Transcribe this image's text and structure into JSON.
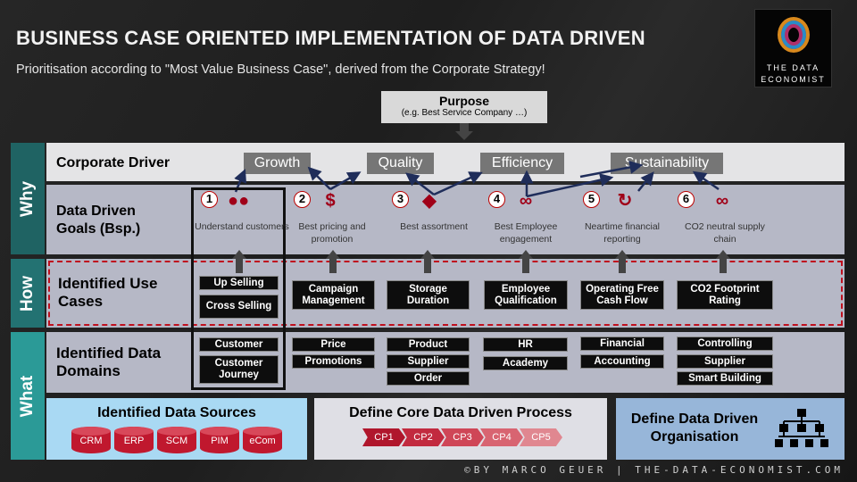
{
  "title": "BUSINESS CASE ORIENTED IMPLEMENTATION OF DATA DRIVEN",
  "subtitle": "Prioritisation according to \"Most Value Business Case\", derived from the Corporate Strategy!",
  "logo": {
    "line1": "THE DATA",
    "line2": "ECONOMIST"
  },
  "purpose": {
    "title": "Purpose",
    "example": "(e.g. Best Service Company …)"
  },
  "sections": {
    "why": "Why",
    "how": "How",
    "what": "What"
  },
  "rows": {
    "corporate_driver": "Corporate Driver",
    "goals": "Data Driven Goals (Bsp.)",
    "use_cases": "Identified Use Cases",
    "domains": "Identified Data Domains"
  },
  "drivers": [
    "Growth",
    "Quality",
    "Efficiency",
    "Sustainability"
  ],
  "goals": [
    {
      "num": "1",
      "icon": "users-money-icon",
      "label": "Understand customers"
    },
    {
      "num": "2",
      "icon": "price-tag-icon",
      "label": "Best pricing and promotion"
    },
    {
      "num": "3",
      "icon": "layers-icon",
      "label": "Best assortment"
    },
    {
      "num": "4",
      "icon": "employees-icon",
      "label": "Best Employee engagement"
    },
    {
      "num": "5",
      "icon": "dollar-cycle-icon",
      "label": "Neartime financial reporting"
    },
    {
      "num": "6",
      "icon": "chain-link-icon",
      "label": "CO2 neutral supply chain"
    }
  ],
  "use_cases": [
    "Up Selling",
    "Cross Selling",
    "Campaign Management",
    "Storage Duration",
    "Employee Qualification",
    "Operating Free Cash Flow",
    "CO2 Footprint Rating"
  ],
  "domains": [
    [
      "Customer",
      "Customer Journey"
    ],
    [
      "Price",
      "Promotions"
    ],
    [
      "Product",
      "Supplier",
      "Order"
    ],
    [
      "HR",
      "Academy"
    ],
    [
      "Financial",
      "Accounting"
    ],
    [
      "Controlling",
      "Supplier",
      "Smart Building"
    ]
  ],
  "bottom": {
    "sources_title": "Identified Data Sources",
    "sources": [
      "CRM",
      "ERP",
      "SCM",
      "PIM",
      "eCom"
    ],
    "process_title": "Define Core Data Driven Process",
    "process_steps": [
      "CP1",
      "CP2",
      "CP3",
      "CP4",
      "CP5"
    ],
    "org_title": "Define Data Driven Organisation"
  },
  "colors": {
    "accent_red": "#a00018",
    "teal": "#237a7a",
    "arrow_navy": "#1f2d5a"
  },
  "footer": "©BY MARCO GEUER | THE-DATA-ECONOMIST.COM"
}
